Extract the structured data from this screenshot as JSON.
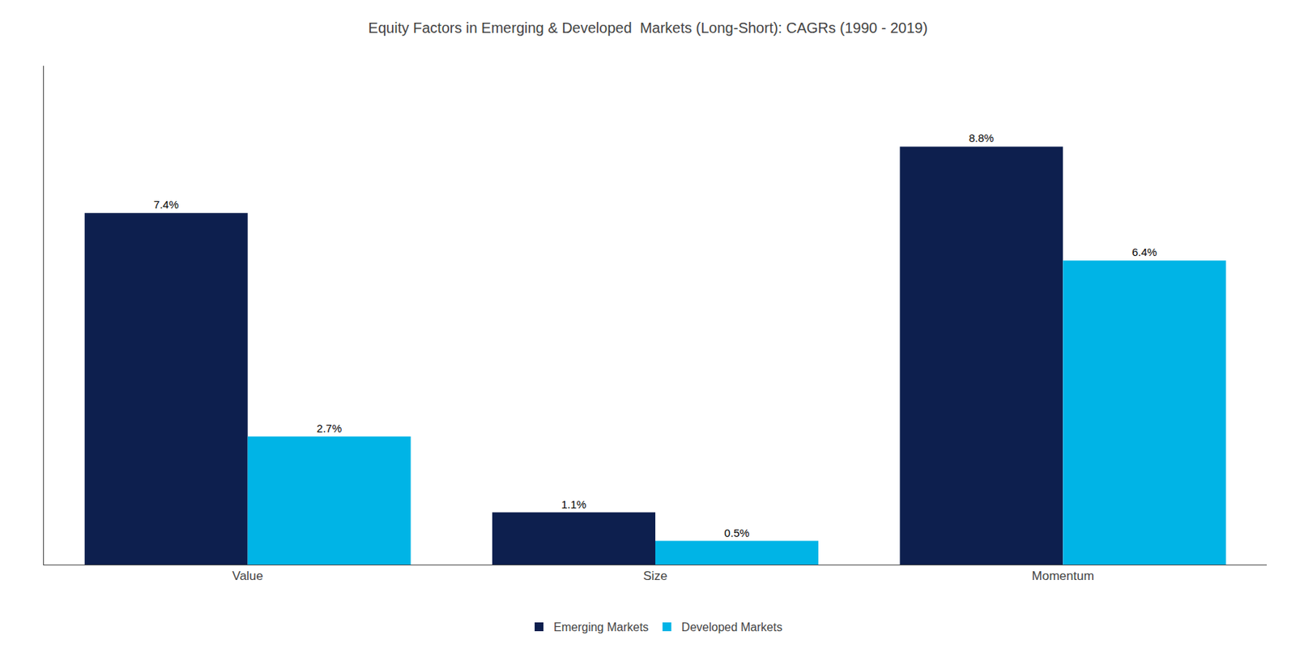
{
  "chart_data": {
    "type": "bar",
    "title": "Equity Factors in Emerging & Developed  Markets (Long-Short): CAGRs (1990 - 2019)",
    "categories": [
      "Value",
      "Size",
      "Momentum"
    ],
    "series": [
      {
        "name": "Emerging Markets",
        "color": "#0d1f4e",
        "values": [
          7.4,
          1.1,
          8.8
        ],
        "value_labels": [
          "7.4%",
          "1.1%",
          "8.8%"
        ]
      },
      {
        "name": "Developed Markets",
        "color": "#00b4e6",
        "values": [
          2.7,
          0.5,
          6.4
        ],
        "value_labels": [
          "2.7%",
          "0.5%",
          "6.4%"
        ]
      }
    ],
    "ylim": [
      0,
      10.5
    ],
    "yticks": [],
    "grid": false,
    "legend": "bottom",
    "data_labels": true,
    "tick_labels": "x"
  }
}
